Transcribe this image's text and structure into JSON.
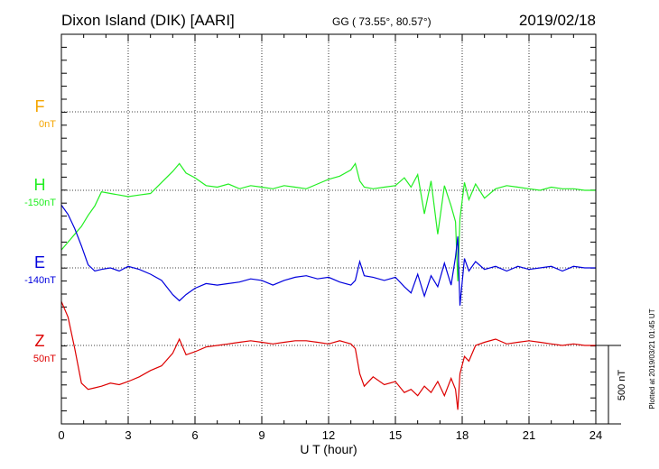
{
  "header": {
    "station": "Dixon Island (DIK)  [AARI]",
    "coords": "GG ( 73.55°,  80.57°)",
    "date": "2019/02/18"
  },
  "footer": {
    "plotted": "Plotted at 2019/03/21 01:45 UT",
    "scale_label": "500 nT"
  },
  "chart_data": {
    "type": "line",
    "xlabel": "U T (hour)",
    "xlim": [
      0,
      24
    ],
    "x_ticks": [
      "0",
      "3",
      "6",
      "9",
      "12",
      "15",
      "18",
      "21",
      "24"
    ],
    "grid": true,
    "scale_bar_nT": 500,
    "series": [
      {
        "name": "F",
        "offset_label": "0nT",
        "color": "#f5a500",
        "x": [],
        "y": []
      },
      {
        "name": "H",
        "offset_label": "-150nT",
        "color": "#22ee22",
        "x": [
          0,
          0.3,
          0.6,
          0.9,
          1.2,
          1.5,
          1.8,
          2.2,
          2.6,
          3.0,
          3.5,
          4.0,
          4.5,
          5.0,
          5.3,
          5.6,
          6.0,
          6.5,
          7.0,
          7.5,
          8.0,
          8.5,
          9.0,
          9.5,
          10.0,
          10.5,
          11.0,
          11.5,
          12.0,
          12.5,
          13.0,
          13.2,
          13.4,
          13.6,
          14.0,
          14.5,
          15.0,
          15.4,
          15.7,
          16.0,
          16.3,
          16.6,
          16.9,
          17.2,
          17.5,
          17.7,
          17.8,
          17.9,
          18.1,
          18.3,
          18.6,
          19.0,
          19.5,
          20.0,
          20.5,
          21.0,
          21.5,
          22.0,
          22.5,
          23.0,
          23.5,
          24.0
        ],
        "y": [
          -380,
          -330,
          -280,
          -230,
          -160,
          -100,
          -10,
          -20,
          -30,
          -40,
          -30,
          -20,
          50,
          120,
          170,
          110,
          80,
          30,
          20,
          40,
          10,
          30,
          20,
          10,
          30,
          20,
          10,
          40,
          70,
          90,
          130,
          170,
          60,
          20,
          10,
          20,
          30,
          80,
          20,
          100,
          -150,
          60,
          -280,
          30,
          -100,
          -200,
          -580,
          -180,
          50,
          -60,
          40,
          -50,
          10,
          30,
          20,
          10,
          0,
          20,
          10,
          10,
          0,
          0
        ]
      },
      {
        "name": "E",
        "offset_label": "-140nT",
        "color": "#0000dd",
        "x": [
          0,
          0.3,
          0.6,
          0.9,
          1.2,
          1.5,
          1.8,
          2.2,
          2.6,
          3.0,
          3.5,
          4.0,
          4.5,
          5.0,
          5.3,
          5.6,
          6.0,
          6.5,
          7.0,
          7.5,
          8.0,
          8.5,
          9.0,
          9.5,
          10.0,
          10.5,
          11.0,
          11.5,
          12.0,
          12.5,
          13.0,
          13.2,
          13.4,
          13.6,
          14.0,
          14.5,
          15.0,
          15.4,
          15.7,
          16.0,
          16.3,
          16.6,
          16.9,
          17.2,
          17.5,
          17.7,
          17.8,
          17.9,
          18.1,
          18.3,
          18.6,
          19.0,
          19.5,
          20.0,
          20.5,
          21.0,
          21.5,
          22.0,
          22.5,
          23.0,
          23.5,
          24.0
        ],
        "y": [
          400,
          340,
          250,
          140,
          20,
          -20,
          -10,
          0,
          -20,
          10,
          -10,
          -40,
          -80,
          -170,
          -210,
          -170,
          -130,
          -100,
          -110,
          -100,
          -90,
          -70,
          -80,
          -110,
          -80,
          -60,
          -50,
          -70,
          -60,
          -90,
          -110,
          -80,
          40,
          -50,
          -60,
          -80,
          -60,
          -120,
          -160,
          -40,
          -180,
          -50,
          -120,
          30,
          -110,
          70,
          200,
          -240,
          60,
          -20,
          40,
          -10,
          10,
          -20,
          10,
          -10,
          0,
          10,
          -20,
          10,
          0,
          0
        ]
      },
      {
        "name": "Z",
        "offset_label": "50nT",
        "color": "#dd0000",
        "x": [
          0,
          0.3,
          0.6,
          0.9,
          1.2,
          1.5,
          1.8,
          2.2,
          2.6,
          3.0,
          3.5,
          4.0,
          4.5,
          5.0,
          5.3,
          5.6,
          6.0,
          6.5,
          7.0,
          7.5,
          8.0,
          8.5,
          9.0,
          9.5,
          10.0,
          10.5,
          11.0,
          11.5,
          12.0,
          12.5,
          13.0,
          13.2,
          13.4,
          13.6,
          14.0,
          14.5,
          15.0,
          15.4,
          15.7,
          16.0,
          16.3,
          16.6,
          16.9,
          17.2,
          17.5,
          17.7,
          17.8,
          17.9,
          18.1,
          18.3,
          18.6,
          19.0,
          19.5,
          20.0,
          20.5,
          21.0,
          21.5,
          22.0,
          22.5,
          23.0,
          23.5,
          24.0
        ],
        "y": [
          280,
          180,
          -20,
          -240,
          -280,
          -270,
          -260,
          -240,
          -250,
          -230,
          -200,
          -160,
          -130,
          -50,
          40,
          -60,
          -40,
          -10,
          0,
          10,
          20,
          30,
          20,
          10,
          20,
          30,
          30,
          20,
          10,
          30,
          10,
          -20,
          -180,
          -260,
          -200,
          -250,
          -230,
          -300,
          -280,
          -320,
          -260,
          -300,
          -230,
          -320,
          -210,
          -280,
          -410,
          -180,
          -70,
          -100,
          0,
          20,
          40,
          10,
          20,
          30,
          20,
          10,
          0,
          10,
          0,
          0
        ]
      }
    ]
  }
}
